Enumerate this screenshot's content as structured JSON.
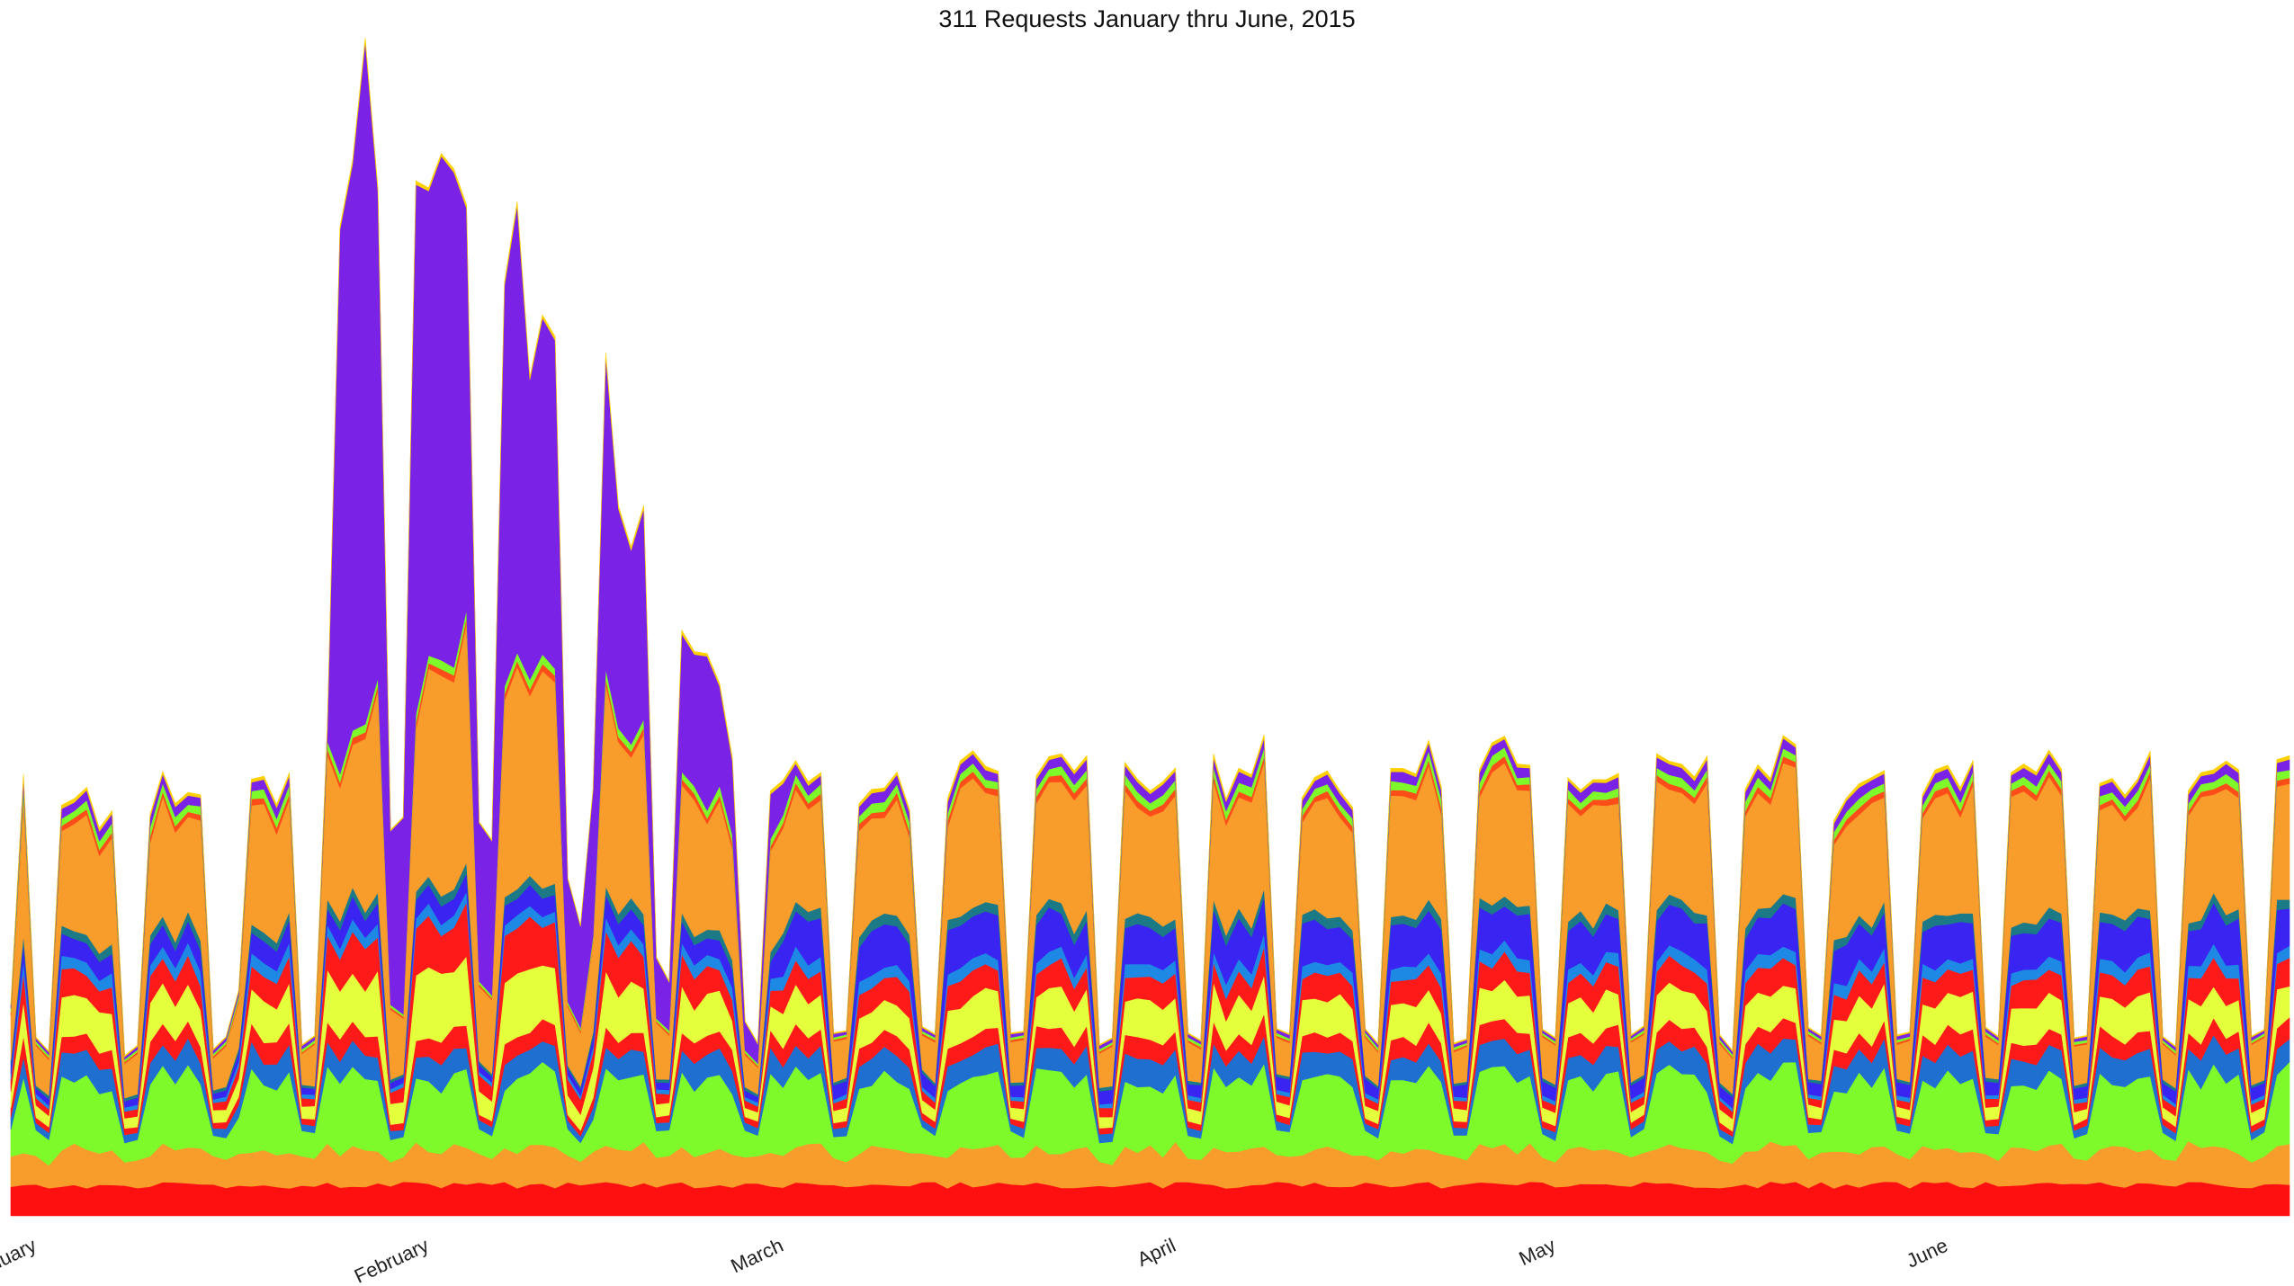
{
  "chart_data": {
    "type": "area",
    "subtype": "streamgraph",
    "title": "311 Requests January thru June, 2015",
    "xlabel": "",
    "ylabel": "",
    "x_start": "2015-01-01",
    "x_end": "2015-06-30",
    "x_ticks": [
      "January",
      "February",
      "March",
      "April",
      "May",
      "June"
    ],
    "grid": false,
    "legend": "none",
    "series": [
      {
        "color": "#ff1010"
      },
      {
        "color": "#f89d2b"
      },
      {
        "color": "#7efa2a"
      },
      {
        "color": "#1e6fd0"
      },
      {
        "color": "#ff1a1a"
      },
      {
        "color": "#e4ff3c"
      },
      {
        "color": "#ff1a1a"
      },
      {
        "color": "#1e88e5"
      },
      {
        "color": "#3a24f2"
      },
      {
        "color": "#1b7a86"
      },
      {
        "color": "#f89d2b"
      },
      {
        "color": "#ff4d1a"
      },
      {
        "color": "#7efa2a"
      },
      {
        "color": "#7a22e6"
      },
      {
        "color": "#ffd000"
      }
    ]
  }
}
